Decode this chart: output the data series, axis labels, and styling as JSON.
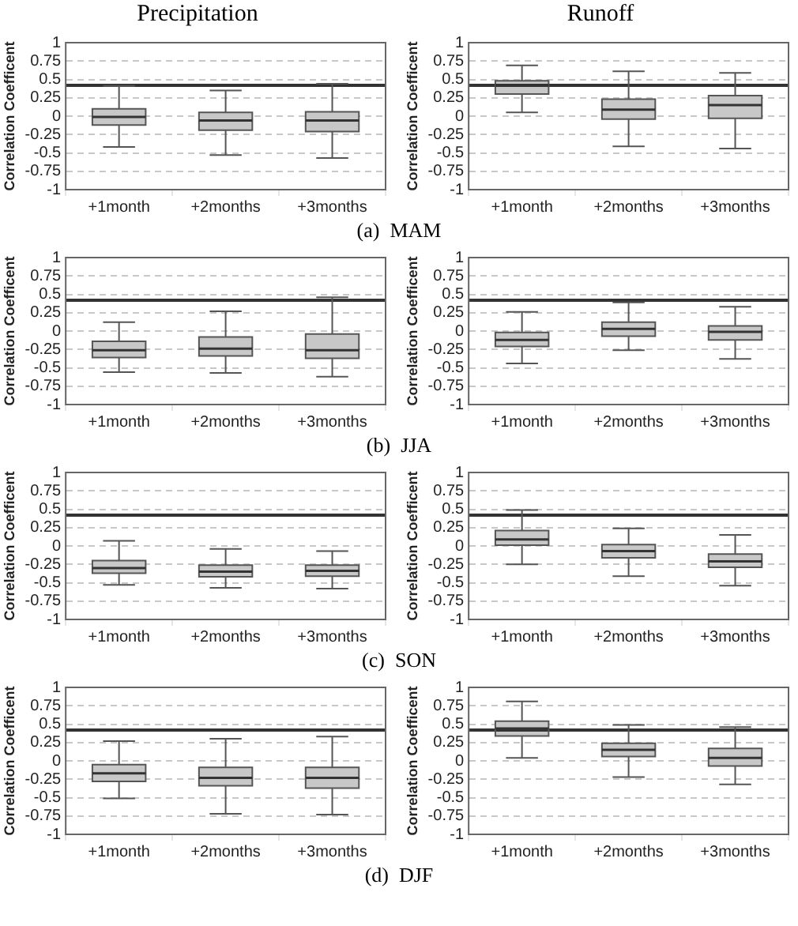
{
  "chart_data": [
    {
      "type": "box",
      "title": "Precipitation",
      "ylabel": "Correlation Coefficent",
      "annotations": [
        "(a)  MAM"
      ],
      "categories": [
        "+1month",
        "+2months",
        "+3months"
      ],
      "color": "#c8c8c8",
      "ylim": [
        -1,
        1
      ],
      "yticks": [
        -1,
        -0.75,
        -0.5,
        -0.25,
        0,
        0.25,
        0.5,
        0.75,
        1
      ],
      "grid": "y",
      "ref_lines": [
        {
          "axis": "y",
          "value": 0.42,
          "color": "#333333"
        }
      ],
      "boxes": [
        {
          "low": -0.42,
          "q1": -0.12,
          "median": -0.01,
          "q3": 0.1,
          "high": 0.41
        },
        {
          "low": -0.53,
          "q1": -0.19,
          "median": -0.06,
          "q3": 0.05,
          "high": 0.35
        },
        {
          "low": -0.57,
          "q1": -0.21,
          "median": -0.06,
          "q3": 0.06,
          "high": 0.44
        }
      ]
    },
    {
      "type": "box",
      "title": "Runoff",
      "ylabel": "Correlation Coefficent",
      "categories": [
        "+1month",
        "+2months",
        "+3months"
      ],
      "color": "#c8c8c8",
      "ylim": [
        -1,
        1
      ],
      "yticks": [
        -1,
        -0.75,
        -0.5,
        -0.25,
        0,
        0.25,
        0.5,
        0.75,
        1
      ],
      "grid": "y",
      "ref_lines": [
        {
          "axis": "y",
          "value": 0.42,
          "color": "#333333"
        }
      ],
      "boxes": [
        {
          "low": 0.05,
          "q1": 0.3,
          "median": 0.42,
          "q3": 0.48,
          "high": 0.69
        },
        {
          "low": -0.41,
          "q1": -0.04,
          "median": 0.09,
          "q3": 0.23,
          "high": 0.61
        },
        {
          "low": -0.44,
          "q1": -0.03,
          "median": 0.15,
          "q3": 0.28,
          "high": 0.59
        }
      ]
    },
    {
      "type": "box",
      "ylabel": "Correlation Coefficent",
      "annotations": [
        "(b)  JJA"
      ],
      "categories": [
        "+1month",
        "+2months",
        "+3months"
      ],
      "color": "#c8c8c8",
      "ylim": [
        -1,
        1
      ],
      "yticks": [
        -1,
        -0.75,
        -0.5,
        -0.25,
        0,
        0.25,
        0.5,
        0.75,
        1
      ],
      "grid": "y",
      "ref_lines": [
        {
          "axis": "y",
          "value": 0.42,
          "color": "#333333"
        }
      ],
      "boxes": [
        {
          "low": -0.56,
          "q1": -0.36,
          "median": -0.26,
          "q3": -0.14,
          "high": 0.12
        },
        {
          "low": -0.57,
          "q1": -0.34,
          "median": -0.24,
          "q3": -0.08,
          "high": 0.27
        },
        {
          "low": -0.62,
          "q1": -0.37,
          "median": -0.26,
          "q3": -0.04,
          "high": 0.46
        }
      ]
    },
    {
      "type": "box",
      "ylabel": "Correlation Coefficent",
      "categories": [
        "+1month",
        "+2months",
        "+3months"
      ],
      "color": "#c8c8c8",
      "ylim": [
        -1,
        1
      ],
      "yticks": [
        -1,
        -0.75,
        -0.5,
        -0.25,
        0,
        0.25,
        0.5,
        0.75,
        1
      ],
      "grid": "y",
      "ref_lines": [
        {
          "axis": "y",
          "value": 0.42,
          "color": "#333333"
        }
      ],
      "boxes": [
        {
          "low": -0.44,
          "q1": -0.21,
          "median": -0.12,
          "q3": -0.02,
          "high": 0.26
        },
        {
          "low": -0.26,
          "q1": -0.07,
          "median": 0.03,
          "q3": 0.12,
          "high": 0.39
        },
        {
          "low": -0.38,
          "q1": -0.12,
          "median": -0.01,
          "q3": 0.07,
          "high": 0.33
        }
      ]
    },
    {
      "type": "box",
      "ylabel": "Correlation Coefficent",
      "annotations": [
        "(c)  SON"
      ],
      "categories": [
        "+1month",
        "+2months",
        "+3months"
      ],
      "color": "#c8c8c8",
      "ylim": [
        -1,
        1
      ],
      "yticks": [
        -1,
        -0.75,
        -0.5,
        -0.25,
        0,
        0.25,
        0.5,
        0.75,
        1
      ],
      "grid": "y",
      "ref_lines": [
        {
          "axis": "y",
          "value": 0.42,
          "color": "#333333"
        }
      ],
      "boxes": [
        {
          "low": -0.53,
          "q1": -0.37,
          "median": -0.3,
          "q3": -0.2,
          "high": 0.07
        },
        {
          "low": -0.57,
          "q1": -0.42,
          "median": -0.35,
          "q3": -0.26,
          "high": -0.04
        },
        {
          "low": -0.58,
          "q1": -0.41,
          "median": -0.34,
          "q3": -0.26,
          "high": -0.07
        }
      ]
    },
    {
      "type": "box",
      "ylabel": "Correlation Coefficent",
      "categories": [
        "+1month",
        "+2months",
        "+3months"
      ],
      "color": "#c8c8c8",
      "ylim": [
        -1,
        1
      ],
      "yticks": [
        -1,
        -0.75,
        -0.5,
        -0.25,
        0,
        0.25,
        0.5,
        0.75,
        1
      ],
      "grid": "y",
      "ref_lines": [
        {
          "axis": "y",
          "value": 0.42,
          "color": "#333333"
        }
      ],
      "boxes": [
        {
          "low": -0.25,
          "q1": 0.01,
          "median": 0.09,
          "q3": 0.21,
          "high": 0.49
        },
        {
          "low": -0.41,
          "q1": -0.16,
          "median": -0.07,
          "q3": 0.02,
          "high": 0.24
        },
        {
          "low": -0.54,
          "q1": -0.29,
          "median": -0.21,
          "q3": -0.11,
          "high": 0.15
        }
      ]
    },
    {
      "type": "box",
      "ylabel": "Correlation Coefficent",
      "annotations": [
        "(d)  DJF"
      ],
      "categories": [
        "+1month",
        "+2months",
        "+3months"
      ],
      "color": "#c8c8c8",
      "ylim": [
        -1,
        1
      ],
      "yticks": [
        -1,
        -0.75,
        -0.5,
        -0.25,
        0,
        0.25,
        0.5,
        0.75,
        1
      ],
      "grid": "y",
      "ref_lines": [
        {
          "axis": "y",
          "value": 0.42,
          "color": "#333333"
        }
      ],
      "boxes": [
        {
          "low": -0.51,
          "q1": -0.28,
          "median": -0.17,
          "q3": -0.05,
          "high": 0.27
        },
        {
          "low": -0.72,
          "q1": -0.34,
          "median": -0.23,
          "q3": -0.09,
          "high": 0.3
        },
        {
          "low": -0.73,
          "q1": -0.37,
          "median": -0.23,
          "q3": -0.09,
          "high": 0.33
        }
      ]
    },
    {
      "type": "box",
      "ylabel": "Correlation Coefficent",
      "categories": [
        "+1month",
        "+2months",
        "+3months"
      ],
      "color": "#c8c8c8",
      "ylim": [
        -1,
        1
      ],
      "yticks": [
        -1,
        -0.75,
        -0.5,
        -0.25,
        0,
        0.25,
        0.5,
        0.75,
        1
      ],
      "grid": "y",
      "ref_lines": [
        {
          "axis": "y",
          "value": 0.42,
          "color": "#333333"
        }
      ],
      "boxes": [
        {
          "low": 0.04,
          "q1": 0.34,
          "median": 0.44,
          "q3": 0.54,
          "high": 0.81
        },
        {
          "low": -0.22,
          "q1": 0.06,
          "median": 0.15,
          "q3": 0.24,
          "high": 0.49
        },
        {
          "low": -0.32,
          "q1": -0.07,
          "median": 0.04,
          "q3": 0.17,
          "high": 0.46
        }
      ]
    }
  ]
}
